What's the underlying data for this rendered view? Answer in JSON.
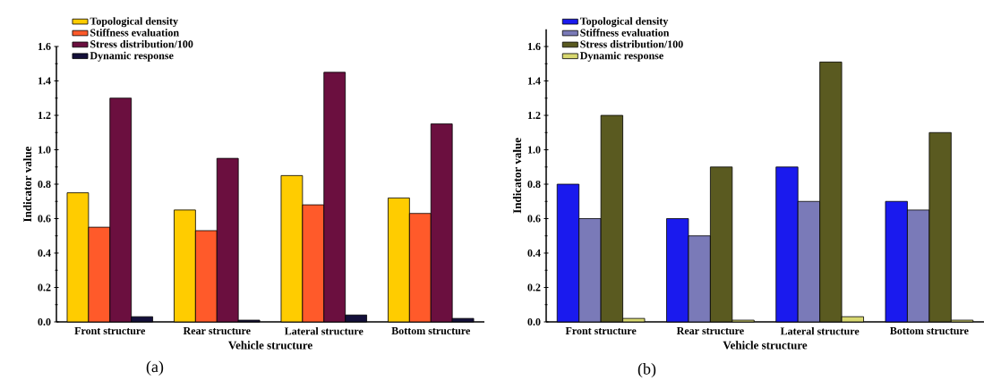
{
  "chart_data": [
    {
      "type": "bar",
      "xlabel": "Vehicle structure",
      "ylabel": "Indicator value",
      "categories": [
        "Front structure",
        "Rear structure",
        "Lateral structure",
        "Bottom structure"
      ],
      "series": [
        {
          "name": "Topological density",
          "color": "#ffcc00",
          "values": [
            0.75,
            0.65,
            0.85,
            0.72
          ]
        },
        {
          "name": "Stiffness evaluation",
          "color": "#ff5a2a",
          "values": [
            0.55,
            0.53,
            0.68,
            0.63
          ]
        },
        {
          "name": "Stress distribution/100",
          "color": "#6b0f3f",
          "values": [
            1.3,
            0.95,
            1.45,
            1.15
          ]
        },
        {
          "name": "Dynamic response",
          "color": "#14103a",
          "values": [
            0.03,
            0.01,
            0.04,
            0.02
          ]
        }
      ],
      "ylim": [
        0,
        1.6
      ],
      "yticks": [
        {
          "value": 0,
          "label": "0.0"
        },
        {
          "value": 0.2,
          "label": "0.2"
        },
        {
          "value": 0.4,
          "label": "0.4"
        },
        {
          "value": 0.6,
          "label": "0.6"
        },
        {
          "value": 0.8,
          "label": "0.8"
        },
        {
          "value": 1.0,
          "label": "1.0"
        },
        {
          "value": 1.2,
          "label": "1.2"
        },
        {
          "value": 1.4,
          "label": "1.4"
        },
        {
          "value": 1.6,
          "label": "1.6"
        }
      ],
      "legend": "top left",
      "annotations": [
        "(a)"
      ]
    },
    {
      "type": "bar",
      "xlabel": "Vehicle structure",
      "ylabel": "Indicator value",
      "categories": [
        "Front structure",
        "Rear structure",
        "Lateral structure",
        "Bottom structure"
      ],
      "series": [
        {
          "name": "Topological density",
          "color": "#1a1aee",
          "values": [
            0.8,
            0.6,
            0.9,
            0.7
          ]
        },
        {
          "name": "Stiffness evaluation",
          "color": "#7a7ab8",
          "values": [
            0.6,
            0.5,
            0.7,
            0.65
          ]
        },
        {
          "name": "Stress distribution/100",
          "color": "#5a5a20",
          "values": [
            1.2,
            0.9,
            1.51,
            1.1
          ]
        },
        {
          "name": "Dynamic response",
          "color": "#d8d870",
          "values": [
            0.02,
            0.01,
            0.03,
            0.01
          ]
        }
      ],
      "ylim": [
        0,
        1.7
      ],
      "yticks": [
        {
          "value": 0,
          "label": "0.0"
        },
        {
          "value": 0.2,
          "label": "0.2"
        },
        {
          "value": 0.4,
          "label": "0.4"
        },
        {
          "value": 0.6,
          "label": "0.6"
        },
        {
          "value": 0.8,
          "label": "0.8"
        },
        {
          "value": 1.0,
          "label": "1.0"
        },
        {
          "value": 1.2,
          "label": "1.2"
        },
        {
          "value": 1.4,
          "label": "1.4"
        },
        {
          "value": 1.6,
          "label": "1.6"
        }
      ],
      "legend": "top left",
      "annotations": [
        "(b)"
      ]
    }
  ]
}
